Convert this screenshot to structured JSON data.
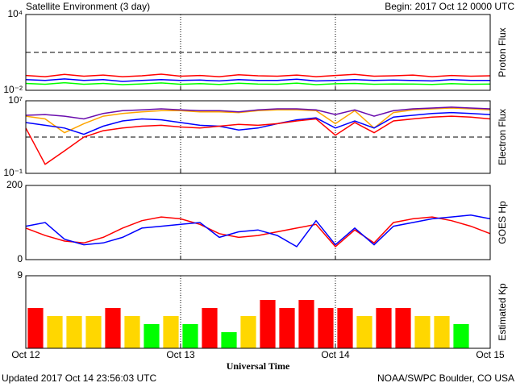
{
  "header": {
    "title": "Satellite Environment (3 day)",
    "begin": "Begin:  2017 Oct 12 0000 UTC"
  },
  "footer": {
    "updated": "Updated 2017 Oct 14 23:56:03 UTC",
    "source": "NOAA/SWPC Boulder, CO USA"
  },
  "xaxis": {
    "label": "Universal Time",
    "xlim": [
      0,
      72
    ],
    "xticks": [
      {
        "value": 0,
        "label": "Oct 12"
      },
      {
        "value": 24,
        "label": "Oct 13"
      },
      {
        "value": 48,
        "label": "Oct 14"
      },
      {
        "value": 72,
        "label": "Oct 15"
      }
    ]
  },
  "chart_data": [
    {
      "type": "line",
      "ylabel": "Proton Flux",
      "log": true,
      "ylim": [
        0.01,
        10000
      ],
      "yticks": [
        {
          "value": 10000,
          "label": "10⁴"
        },
        {
          "value": 0.01,
          "label": "10⁻²"
        }
      ],
      "thresholds": [
        10
      ],
      "x": [
        0,
        3,
        6,
        9,
        12,
        15,
        18,
        21,
        24,
        27,
        30,
        33,
        36,
        39,
        42,
        45,
        48,
        51,
        54,
        57,
        60,
        63,
        66,
        69,
        72
      ],
      "series": [
        {
          "color": "#ff0000",
          "values": [
            0.15,
            0.12,
            0.18,
            0.13,
            0.16,
            0.12,
            0.14,
            0.19,
            0.13,
            0.15,
            0.12,
            0.17,
            0.14,
            0.13,
            0.16,
            0.12,
            0.15,
            0.18,
            0.13,
            0.14,
            0.16,
            0.12,
            0.15,
            0.13,
            0.14
          ]
        },
        {
          "color": "#0000ff",
          "values": [
            0.07,
            0.06,
            0.08,
            0.06,
            0.07,
            0.05,
            0.06,
            0.07,
            0.06,
            0.065,
            0.055,
            0.07,
            0.06,
            0.06,
            0.075,
            0.055,
            0.06,
            0.07,
            0.06,
            0.065,
            0.06,
            0.055,
            0.07,
            0.06,
            0.06
          ]
        },
        {
          "color": "#00ff00",
          "values": [
            0.035,
            0.03,
            0.04,
            0.03,
            0.035,
            0.028,
            0.032,
            0.038,
            0.03,
            0.034,
            0.029,
            0.036,
            0.031,
            0.03,
            0.037,
            0.028,
            0.033,
            0.035,
            0.03,
            0.032,
            0.031,
            0.029,
            0.034,
            0.03,
            0.031
          ]
        }
      ]
    },
    {
      "type": "line",
      "ylabel": "Electron Flux",
      "log": true,
      "ylim": [
        0.1,
        10000000
      ],
      "yticks": [
        {
          "value": 10000000,
          "label": "10⁷"
        },
        {
          "value": 0.1,
          "label": "10⁻¹"
        }
      ],
      "thresholds": [
        1000
      ],
      "x": [
        0,
        3,
        6,
        9,
        12,
        15,
        18,
        21,
        24,
        27,
        30,
        33,
        36,
        39,
        42,
        45,
        48,
        51,
        54,
        57,
        60,
        63,
        66,
        69,
        72
      ],
      "series": [
        {
          "color": "#ffa500",
          "values": [
            200000,
            100000,
            3000,
            30000,
            200000,
            400000,
            600000,
            800000,
            800000,
            600000,
            600000,
            500000,
            800000,
            1000000,
            1000000,
            800000,
            30000,
            800000,
            10000,
            500000,
            1000000,
            1300000,
            1600000,
            1300000,
            1000000
          ]
        },
        {
          "color": "#6a0dad",
          "values": [
            250000,
            300000,
            200000,
            100000,
            400000,
            800000,
            1000000,
            1300000,
            1000000,
            800000,
            800000,
            600000,
            1000000,
            1300000,
            1300000,
            1000000,
            300000,
            1000000,
            200000,
            800000,
            1300000,
            1600000,
            2000000,
            1600000,
            1300000
          ]
        },
        {
          "color": "#0000ff",
          "values": [
            40000,
            20000,
            10000,
            2000,
            16000,
            60000,
            100000,
            80000,
            40000,
            20000,
            16000,
            6000,
            10000,
            30000,
            80000,
            130000,
            10000,
            60000,
            10000,
            160000,
            250000,
            400000,
            500000,
            400000,
            300000
          ]
        },
        {
          "color": "#ff0000",
          "values": [
            10000,
            1,
            30,
            1000,
            5000,
            10000,
            16000,
            20000,
            13000,
            10000,
            16000,
            25000,
            20000,
            30000,
            60000,
            100000,
            1600,
            40000,
            3000,
            60000,
            100000,
            160000,
            200000,
            160000,
            100000
          ]
        }
      ]
    },
    {
      "type": "line",
      "ylabel": "GOES Hp",
      "log": false,
      "ylim": [
        0,
        200
      ],
      "yticks": [
        200,
        0
      ],
      "x": [
        0,
        3,
        6,
        9,
        12,
        15,
        18,
        21,
        24,
        27,
        30,
        33,
        36,
        39,
        42,
        45,
        48,
        51,
        54,
        57,
        60,
        63,
        66,
        69,
        72
      ],
      "series": [
        {
          "color": "#ff0000",
          "values": [
            85,
            65,
            50,
            45,
            60,
            85,
            105,
            115,
            110,
            95,
            70,
            60,
            65,
            75,
            85,
            95,
            35,
            80,
            45,
            100,
            110,
            115,
            105,
            90,
            70
          ]
        },
        {
          "color": "#0000ff",
          "values": [
            90,
            100,
            55,
            40,
            45,
            60,
            85,
            90,
            95,
            100,
            60,
            75,
            80,
            65,
            35,
            105,
            40,
            85,
            40,
            90,
            100,
            110,
            115,
            120,
            110
          ]
        }
      ]
    },
    {
      "type": "bar",
      "ylabel": "Estimated Kp",
      "log": false,
      "ylim": [
        0,
        9
      ],
      "yticks": [
        9
      ],
      "x": [
        0,
        3,
        6,
        9,
        12,
        15,
        18,
        21,
        24,
        27,
        30,
        33,
        36,
        39,
        42,
        45,
        48,
        51,
        54,
        57,
        60,
        63,
        66
      ],
      "values": [
        5,
        4,
        4,
        4,
        5,
        4,
        3,
        4,
        3,
        5,
        2,
        4,
        6,
        5,
        6,
        5,
        5,
        4,
        5,
        5,
        4,
        4,
        3
      ],
      "colors": [
        "#ff0000",
        "#ffd700",
        "#ffd700",
        "#ffd700",
        "#ff0000",
        "#ffd700",
        "#00ff00",
        "#ffd700",
        "#00ff00",
        "#ff0000",
        "#00ff00",
        "#ffd700",
        "#ff0000",
        "#ff0000",
        "#ff0000",
        "#ff0000",
        "#ff0000",
        "#ffd700",
        "#ff0000",
        "#ff0000",
        "#ffd700",
        "#ffd700",
        "#00ff00"
      ]
    }
  ]
}
